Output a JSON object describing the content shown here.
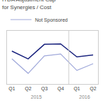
{
  "chart_data": {
    "type": "line",
    "title": "ITDA Adjustment Cap for Synergies / Cost",
    "categories": [
      "Q1",
      "Q2",
      "Q3",
      "Q4",
      "Q1",
      "Q2"
    ],
    "annotations": [
      "2015",
      "2016"
    ],
    "series": [
      {
        "color": "#1a237e",
        "values": [
          6.8,
          5.2,
          8.2,
          8.3,
          5.6,
          6.0
        ]
      },
      {
        "name": "Not Sponsored",
        "color": "#9fa8da",
        "values": [
          5.2,
          2.2,
          5.8,
          6.2,
          2.8,
          4.2
        ]
      }
    ],
    "ylim": [
      0,
      11
    ],
    "grid": false,
    "tick_labels": "x"
  }
}
